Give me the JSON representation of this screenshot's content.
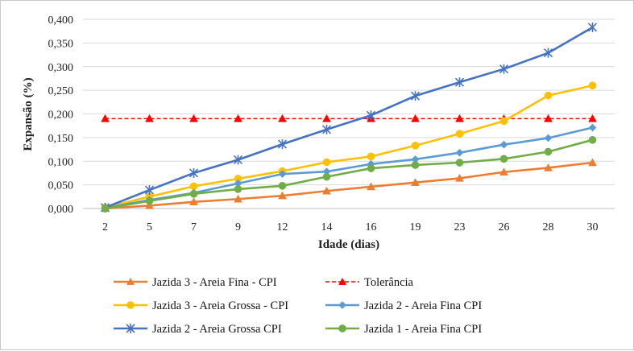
{
  "chart_data": {
    "type": "line",
    "xlabel": "Idade (dias)",
    "ylabel": "Expansão (%)",
    "categories": [
      "2",
      "5",
      "7",
      "9",
      "12",
      "14",
      "16",
      "19",
      "23",
      "26",
      "28",
      "30"
    ],
    "ylim": [
      0,
      0.4
    ],
    "yticks": [
      "0,000",
      "0,050",
      "0,100",
      "0,150",
      "0,200",
      "0,250",
      "0,300",
      "0,350",
      "0,400"
    ],
    "grid": true,
    "legend_position": "bottom",
    "series": [
      {
        "name": "Jazida 3 - Areia Fina - CPI",
        "color": "#ed7d31",
        "marker": "triangle",
        "dash": false,
        "values": [
          0.0,
          0.006,
          0.014,
          0.02,
          0.027,
          0.037,
          0.046,
          0.055,
          0.064,
          0.077,
          0.086,
          0.097
        ]
      },
      {
        "name": "Tolerância",
        "color": "#ff0000",
        "marker": "triangle",
        "dash": true,
        "values": [
          0.19,
          0.19,
          0.19,
          0.19,
          0.19,
          0.19,
          0.19,
          0.19,
          0.19,
          0.19,
          0.19,
          0.19
        ]
      },
      {
        "name": "Jazida 3 - Areia Grossa - CPI",
        "color": "#ffc000",
        "marker": "circle",
        "dash": false,
        "values": [
          0.002,
          0.025,
          0.047,
          0.063,
          0.079,
          0.098,
          0.11,
          0.133,
          0.158,
          0.185,
          0.239,
          0.26
        ]
      },
      {
        "name": "Jazida 2 - Areia Fina CPI",
        "color": "#5b9bd5",
        "marker": "diamond",
        "dash": false,
        "values": [
          0.001,
          0.018,
          0.033,
          0.053,
          0.073,
          0.078,
          0.094,
          0.104,
          0.118,
          0.135,
          0.149,
          0.171
        ]
      },
      {
        "name": "Jazida 2 - Areia Grossa CPI",
        "color": "#4472c4",
        "marker": "asterisk",
        "dash": false,
        "values": [
          0.002,
          0.039,
          0.075,
          0.103,
          0.136,
          0.167,
          0.197,
          0.238,
          0.267,
          0.295,
          0.329,
          0.383
        ]
      },
      {
        "name": "Jazida 1 - Areia Fina CPI",
        "color": "#70ad47",
        "marker": "circle",
        "dash": false,
        "values": [
          0.0,
          0.016,
          0.031,
          0.041,
          0.048,
          0.067,
          0.085,
          0.092,
          0.097,
          0.105,
          0.12,
          0.145
        ]
      }
    ]
  }
}
